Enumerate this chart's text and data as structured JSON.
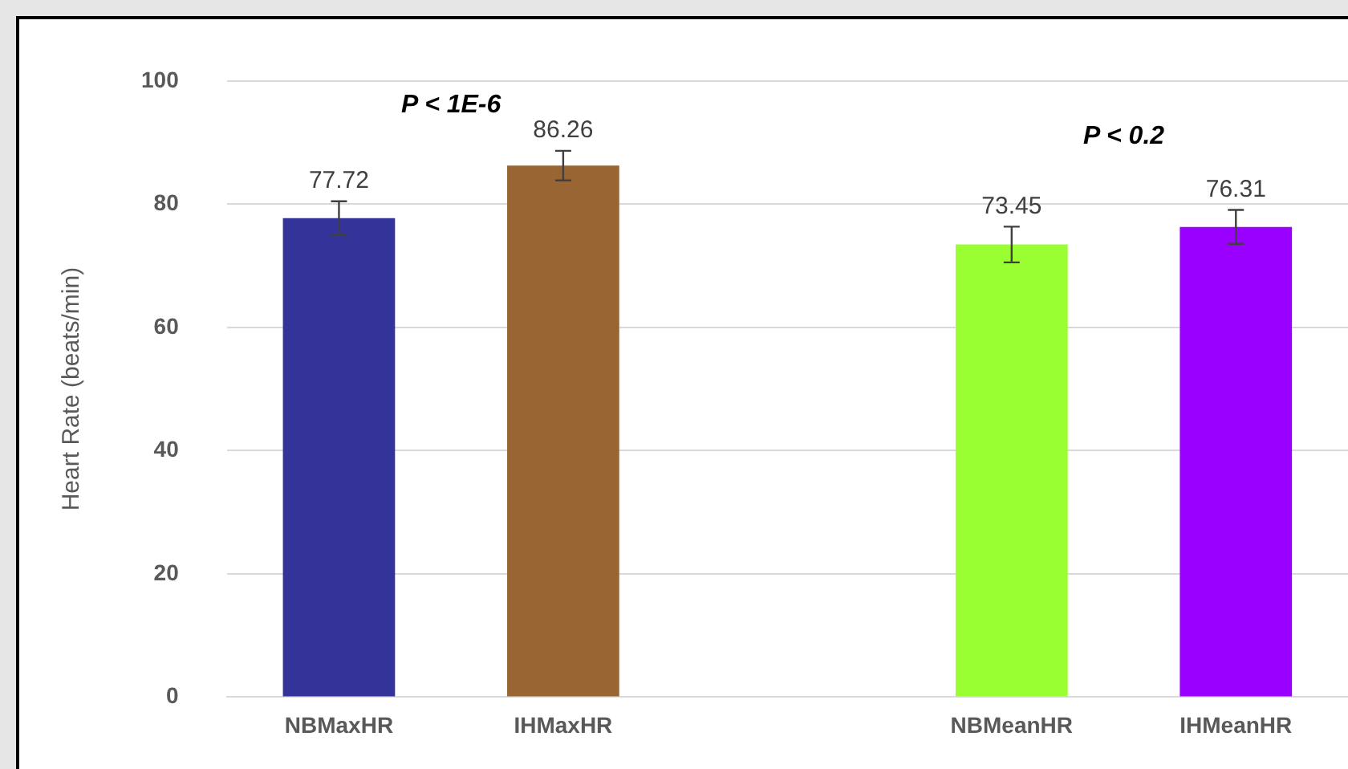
{
  "chart_data": {
    "type": "bar",
    "ylabel": "Heart Rate (beats/min)",
    "categories": [
      "NBMaxHR",
      "IHMaxHR",
      null,
      "NBMeanHR",
      "IHMeanHR"
    ],
    "values": [
      77.72,
      86.26,
      null,
      73.45,
      76.31
    ],
    "errors": [
      2.75,
      2.4,
      null,
      2.9,
      2.75
    ],
    "colors": [
      "#333399",
      "#996633",
      null,
      "#99ff33",
      "#9900ff"
    ],
    "data_labels": true,
    "ylim": [
      0,
      100
    ],
    "yticks": [
      0,
      20,
      40,
      60,
      80,
      100
    ],
    "grid": "y",
    "legend": false,
    "annotations": [
      "P < 1E-6",
      "P < 0.2"
    ]
  }
}
